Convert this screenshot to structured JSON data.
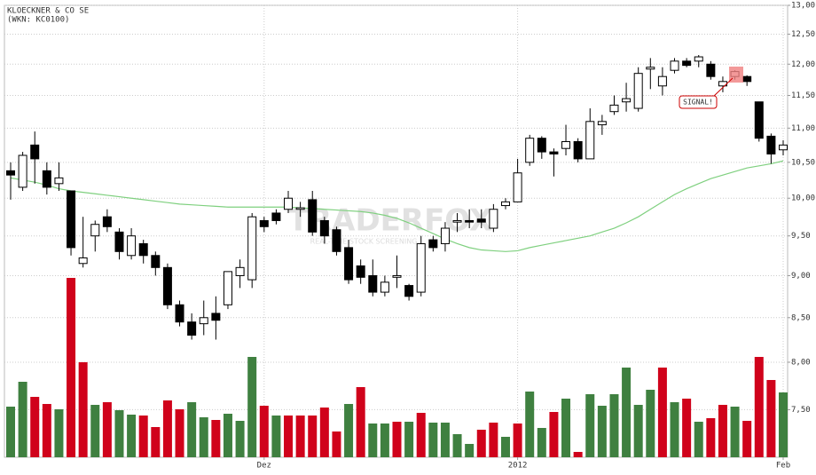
{
  "chart_data": {
    "type": "candlestick",
    "title": "KLOECKNER & CO SE",
    "subtitle": "(WKN: KC0100)",
    "annotation": "SIGNAL!",
    "watermark": "TRADERFOX",
    "watermark_subtitle": "REAL-TIME STOCK SCREENING",
    "categories": [
      null,
      null,
      null,
      null,
      null,
      null,
      null,
      null,
      null,
      null,
      null,
      null,
      null,
      null,
      null,
      null,
      null,
      null,
      null,
      null,
      null,
      "Dez",
      null,
      null,
      null,
      null,
      null,
      null,
      null,
      null,
      null,
      null,
      null,
      null,
      null,
      null,
      null,
      null,
      null,
      null,
      null,
      null,
      "2012",
      null,
      null,
      null,
      null,
      null,
      null,
      null,
      null,
      null,
      null,
      null,
      null,
      null,
      null,
      null,
      null,
      null,
      null,
      null,
      null,
      null,
      "Feb"
    ],
    "open": [
      10.38,
      10.15,
      10.75,
      10.38,
      10.2,
      10.1,
      9.15,
      9.5,
      9.75,
      9.55,
      9.25,
      9.4,
      9.25,
      9.1,
      8.65,
      8.45,
      8.43,
      8.55,
      8.65,
      9.0,
      8.95,
      9.7,
      9.8,
      9.85,
      9.85,
      9.98,
      9.7,
      9.58,
      9.35,
      9.12,
      9.0,
      8.8,
      8.98,
      8.88,
      8.8,
      9.45,
      9.4,
      9.68,
      9.7,
      9.72,
      9.6,
      9.9,
      9.95,
      10.5,
      10.85,
      10.65,
      10.7,
      10.8,
      10.55,
      11.05,
      11.25,
      11.4,
      11.3,
      11.92,
      11.65,
      11.9,
      12.05,
      12.05,
      12.0,
      11.65,
      11.8,
      11.8,
      11.4,
      10.88,
      10.68
    ],
    "high": [
      10.5,
      10.65,
      10.95,
      10.5,
      10.5,
      10.1,
      9.75,
      9.7,
      9.85,
      9.6,
      9.6,
      9.45,
      9.3,
      9.15,
      8.7,
      8.55,
      8.7,
      8.75,
      9.05,
      9.2,
      9.8,
      9.75,
      9.85,
      10.1,
      9.95,
      10.1,
      9.75,
      9.62,
      9.45,
      9.2,
      9.2,
      9.0,
      9.25,
      8.9,
      9.5,
      9.5,
      9.68,
      9.8,
      9.85,
      9.85,
      9.92,
      10.0,
      10.55,
      10.9,
      10.88,
      10.7,
      11.05,
      10.85,
      11.3,
      11.2,
      11.5,
      11.7,
      11.95,
      12.1,
      11.95,
      12.1,
      12.1,
      12.15,
      12.05,
      11.8,
      11.9,
      11.82,
      11.4,
      10.92,
      10.82
    ],
    "low": [
      9.98,
      10.1,
      10.2,
      10.05,
      10.1,
      9.25,
      9.1,
      9.3,
      9.55,
      9.2,
      9.2,
      9.15,
      9.0,
      8.6,
      8.4,
      8.25,
      8.3,
      8.25,
      8.6,
      8.85,
      8.85,
      9.55,
      9.65,
      9.8,
      9.75,
      9.5,
      9.4,
      9.25,
      8.9,
      8.9,
      8.75,
      8.75,
      8.85,
      8.7,
      8.75,
      9.3,
      9.3,
      9.55,
      9.6,
      9.6,
      9.55,
      9.85,
      9.95,
      10.45,
      10.55,
      10.3,
      10.6,
      10.5,
      10.55,
      10.9,
      11.2,
      11.25,
      11.25,
      11.6,
      11.5,
      11.85,
      11.95,
      11.95,
      11.75,
      11.55,
      11.75,
      11.65,
      10.8,
      10.48,
      10.6
    ],
    "close": [
      10.32,
      10.6,
      10.55,
      10.15,
      10.28,
      9.35,
      9.22,
      9.65,
      9.62,
      9.3,
      9.5,
      9.25,
      9.1,
      8.65,
      8.45,
      8.3,
      8.5,
      8.47,
      9.05,
      9.1,
      9.75,
      9.62,
      9.7,
      10.0,
      9.87,
      9.55,
      9.5,
      9.3,
      8.95,
      8.98,
      8.8,
      8.92,
      9.0,
      8.75,
      9.4,
      9.35,
      9.6,
      9.7,
      9.68,
      9.68,
      9.85,
      9.95,
      10.35,
      10.85,
      10.65,
      10.62,
      10.8,
      10.55,
      11.1,
      11.1,
      11.35,
      11.45,
      11.85,
      11.95,
      11.8,
      12.05,
      11.98,
      12.12,
      11.8,
      11.72,
      11.88,
      11.72,
      10.85,
      10.62,
      10.75
    ],
    "up_color": "#ffffff",
    "down_color": "#000000",
    "moving_average": {
      "color": "#7fd07f",
      "values": [
        10.28,
        10.25,
        10.22,
        10.18,
        10.13,
        10.1,
        10.08,
        10.06,
        10.04,
        10.02,
        10.0,
        9.98,
        9.96,
        9.94,
        9.92,
        9.91,
        9.9,
        9.89,
        9.88,
        9.88,
        9.88,
        9.88,
        9.88,
        9.88,
        9.87,
        9.86,
        9.85,
        9.84,
        9.83,
        9.82,
        9.8,
        9.77,
        9.73,
        9.67,
        9.6,
        9.53,
        9.46,
        9.4,
        9.35,
        9.32,
        9.31,
        9.3,
        9.31,
        9.35,
        9.38,
        9.41,
        9.44,
        9.47,
        9.5,
        9.55,
        9.6,
        9.67,
        9.75,
        9.85,
        9.95,
        10.05,
        10.13,
        10.2,
        10.27,
        10.32,
        10.37,
        10.42,
        10.45,
        10.48,
        10.52
      ]
    },
    "volume": [
      57,
      85,
      68,
      60,
      54,
      202,
      107,
      59,
      62,
      53,
      48,
      47,
      34,
      64,
      54,
      62,
      45,
      42,
      49,
      41,
      113,
      58,
      47,
      47,
      47,
      47,
      56,
      29,
      60,
      79,
      38,
      38,
      40,
      40,
      50,
      39,
      39,
      26,
      15,
      31,
      39,
      23,
      38,
      74,
      33,
      51,
      66,
      6,
      71,
      58,
      71,
      101,
      59,
      76,
      101,
      62,
      66,
      40,
      44,
      59,
      57,
      41,
      113,
      87,
      73
    ],
    "volume_lim": [
      0,
      509
    ],
    "volume_colors": [
      "#3f8040",
      "#3f8040",
      "#d0021b",
      "#d0021b",
      "#3f8040",
      "#d0021b",
      "#d0021b",
      "#3f8040",
      "#d0021b",
      "#3f8040",
      "#3f8040",
      "#d0021b",
      "#d0021b",
      "#d0021b",
      "#d0021b",
      "#3f8040",
      "#3f8040",
      "#d0021b",
      "#3f8040",
      "#3f8040",
      "#3f8040",
      "#d0021b",
      "#3f8040",
      "#d0021b",
      "#d0021b",
      "#d0021b",
      "#d0021b",
      "#d0021b",
      "#3f8040",
      "#d0021b",
      "#3f8040",
      "#3f8040",
      "#d0021b",
      "#3f8040",
      "#d0021b",
      "#3f8040",
      "#3f8040",
      "#3f8040",
      "#3f8040",
      "#d0021b",
      "#d0021b",
      "#3f8040",
      "#d0021b",
      "#3f8040",
      "#3f8040",
      "#d0021b",
      "#3f8040",
      "#d0021b",
      "#3f8040",
      "#3f8040",
      "#3f8040",
      "#3f8040",
      "#3f8040",
      "#3f8040",
      "#d0021b",
      "#3f8040",
      "#d0021b",
      "#3f8040",
      "#d0021b",
      "#d0021b",
      "#3f8040",
      "#d0021b",
      "#d0021b",
      "#d0021b",
      "#3f8040"
    ],
    "log_scale": true,
    "ylim": [
      7.03,
      13
    ],
    "yticks": [
      {
        "value": 13,
        "label": "13,00"
      },
      {
        "value": 12.5,
        "label": "12,50"
      },
      {
        "value": 12,
        "label": "12,00"
      },
      {
        "value": 11.5,
        "label": "11,50"
      },
      {
        "value": 11,
        "label": "11,00"
      },
      {
        "value": 10.5,
        "label": "10,50"
      },
      {
        "value": 10,
        "label": "10,00"
      },
      {
        "value": 9.5,
        "label": "9,50"
      },
      {
        "value": 9,
        "label": "9,00"
      },
      {
        "value": 8.5,
        "label": "8,50"
      },
      {
        "value": 8,
        "label": "8,00"
      },
      {
        "value": 7.5,
        "label": "7,50"
      }
    ],
    "grid": true
  }
}
